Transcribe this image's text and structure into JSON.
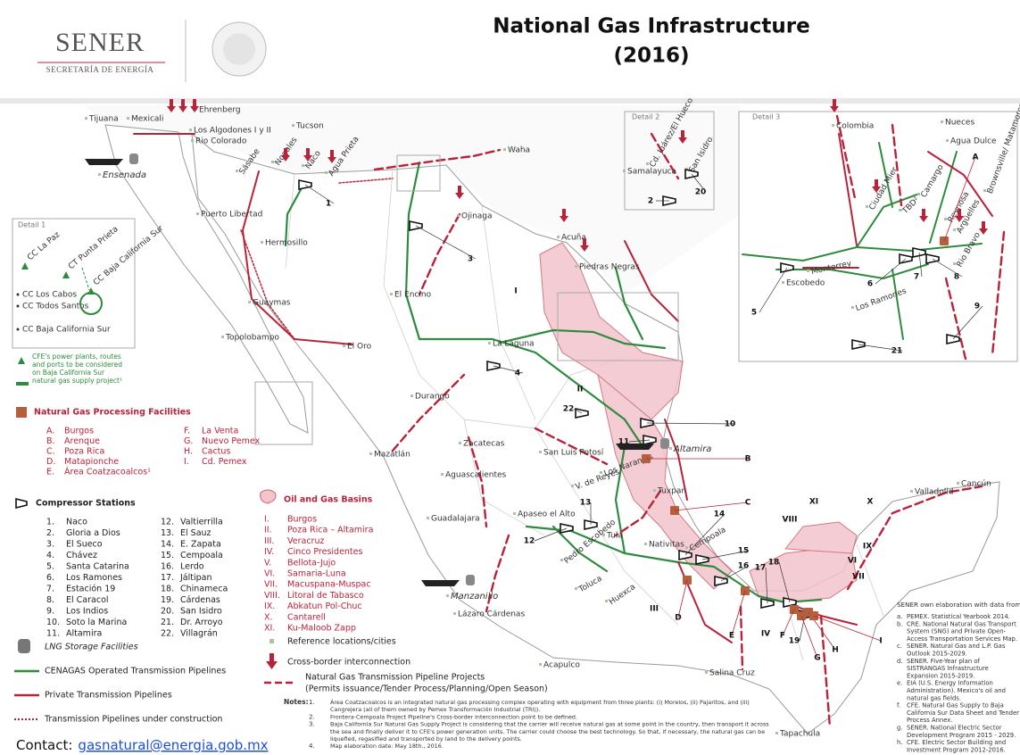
{
  "header": {
    "logo": "SENER",
    "logo_subtitle": "SECRETARÍA DE ENERGÍA",
    "title_line1": "National Gas Infrastructure",
    "title_line2": "(2016)"
  },
  "map": {
    "cities": [
      "Tijuana",
      "Mexicali",
      "Ehrenberg",
      "Los Algodones I y II",
      "Rio Colorado",
      "Tucson",
      "Ensenada",
      "Sásabe",
      "Nogales",
      "Naco",
      "Agua Prieta",
      "Waha",
      "Hermosillo",
      "Puerto Libertad",
      "Ojinaga",
      "Acuña",
      "Piedras Negras",
      "El Encino",
      "Guaymas",
      "El Oro",
      "Topolobampo",
      "La Laguna",
      "Durango",
      "Mazatlán",
      "Zacatecas",
      "San Luis Potosí",
      "Aguascalientes",
      "V. de Reyes",
      "Los Naranjos",
      "Altamira",
      "Tuxpan",
      "Guadalajara",
      "Apaseo el Alto",
      "Pedro Escobedo",
      "Tula",
      "Nativitas",
      "Cempoala",
      "Toluca",
      "Huexca",
      "Manzanillo",
      "Lázaro Cárdenas",
      "Acapulco",
      "Salina Cruz",
      "Tapachula",
      "Valladolid",
      "Cancún",
      "Colombia",
      "Nueces",
      "Agua Dulce",
      "Ciudad Mier",
      "TBD²",
      "Camargo",
      "Reynosa",
      "Argüelles",
      "Brownsville/ Matamoros",
      "Monterrey",
      "Escobedo",
      "Los Ramones",
      "Rio Bravo",
      "Samalayuca",
      "Cd. Juárez/El Hueco",
      "San Isidro"
    ],
    "details": [
      "Detail 1",
      "Detail 2",
      "Detail 3"
    ],
    "detail1_plants": [
      "CC La Paz",
      "CT Punta Prieta",
      "CC Baja California Sur"
    ],
    "detail1_list": [
      "CC Los Cabos",
      "CC Todos Santos",
      "CC Baja California Sur"
    ],
    "stations": [
      1,
      2,
      3,
      4,
      5,
      6,
      7,
      8,
      9,
      10,
      11,
      12,
      13,
      14,
      15,
      16,
      17,
      18,
      19,
      20,
      21,
      22
    ],
    "facilities": [
      "A",
      "B",
      "C",
      "D",
      "E",
      "F",
      "G",
      "H",
      "I"
    ],
    "basins": [
      "I",
      "II",
      "III",
      "IV",
      "VI",
      "VII",
      "VIII",
      "IX",
      "X",
      "XI"
    ]
  },
  "legend": {
    "cfe_note": [
      "CFE's power plants, routes",
      "and ports to be considered",
      "on Baja California Sur",
      "natural gas supply project¹"
    ],
    "processing_title": "Natural Gas Processing Facilities",
    "processing": [
      {
        "key": "A.",
        "name": "Burgos"
      },
      {
        "key": "B.",
        "name": "Arenque"
      },
      {
        "key": "C.",
        "name": "Poza Rica"
      },
      {
        "key": "D.",
        "name": "Matapionche"
      },
      {
        "key": "E.",
        "name": "Área Coatzacoalcos¹"
      },
      {
        "key": "F.",
        "name": "La Venta"
      },
      {
        "key": "G.",
        "name": "Nuevo Pemex"
      },
      {
        "key": "H.",
        "name": "Cactus"
      },
      {
        "key": "I.",
        "name": "Cd. Pemex"
      }
    ],
    "compressor_title": "Compressor Stations",
    "compressors": [
      {
        "key": "1.",
        "name": "Naco"
      },
      {
        "key": "2.",
        "name": "Gloria a Dios"
      },
      {
        "key": "3.",
        "name": "El Sueco"
      },
      {
        "key": "4.",
        "name": "Chávez"
      },
      {
        "key": "5.",
        "name": "Santa Catarina"
      },
      {
        "key": "6.",
        "name": "Los Ramones"
      },
      {
        "key": "7.",
        "name": "Estación 19"
      },
      {
        "key": "8.",
        "name": "El Caracol"
      },
      {
        "key": "9.",
        "name": "Los Indios"
      },
      {
        "key": "10.",
        "name": "Soto la Marina"
      },
      {
        "key": "11.",
        "name": "Altamira"
      },
      {
        "key": "12.",
        "name": "Valtierrilla"
      },
      {
        "key": "13.",
        "name": "El Sauz"
      },
      {
        "key": "14.",
        "name": "E. Zapata"
      },
      {
        "key": "15.",
        "name": "Cempoala"
      },
      {
        "key": "16.",
        "name": "Lerdo"
      },
      {
        "key": "17.",
        "name": "Jáltipan"
      },
      {
        "key": "18.",
        "name": "Chinameca"
      },
      {
        "key": "19.",
        "name": "Cárdenas"
      },
      {
        "key": "20.",
        "name": "San Isidro"
      },
      {
        "key": "21.",
        "name": "Dr. Arroyo"
      },
      {
        "key": "22.",
        "name": "Villagrán"
      }
    ],
    "basins_title": "Oil and Gas Basins",
    "basins": [
      {
        "key": "I.",
        "name": "Burgos"
      },
      {
        "key": "II.",
        "name": "Poza Rica – Altamira"
      },
      {
        "key": "III.",
        "name": "Veracruz"
      },
      {
        "key": "IV.",
        "name": "Cinco Presidentes"
      },
      {
        "key": "V.",
        "name": "Bellota-Jujo"
      },
      {
        "key": "VI.",
        "name": "Samaria-Luna"
      },
      {
        "key": "VII.",
        "name": "Macuspana-Muspac"
      },
      {
        "key": "VIII.",
        "name": "Litoral de Tabasco"
      },
      {
        "key": "IX.",
        "name": "Abkatun Pol-Chuc"
      },
      {
        "key": "X.",
        "name": "Cantarell"
      },
      {
        "key": "XI.",
        "name": "Ku-Maloob Zapp"
      }
    ],
    "lng": "LNG Storage Facilities",
    "cenagas": "CENAGAS Operated Transmission Pipelines",
    "private": "Private Transmission Pipelines",
    "construction": "Transmission Pipelines under construction",
    "reference": "Reference locations/cities",
    "crossborder": "Cross-border interconnection",
    "projects": [
      "Natural Gas Transmission Pipeline Projects",
      "(Permits issuance/Tender Process/Planning/Open Season)"
    ]
  },
  "notes": {
    "label": "Notes:",
    "items": [
      {
        "key": "1.",
        "lines": [
          "Área Coatzacoalcos is an integrated natural gas processing  complex operating with equipment from three plants: (i) Morelos, (ii) Pajaritos, and (iii)",
          "Cangrejera  (all of them owned by Pemex Transformación Industrial (TRI))."
        ]
      },
      {
        "key": "2.",
        "lines": [
          "Frontera-Cempoala Project Pipeline's Cross-border interconnection point to be defined."
        ]
      },
      {
        "key": "3.",
        "lines": [
          "Baja California Sur Natural Gas Supply Project is considering that the carrier will receive natural gas at some point in the country, then transport it across",
          "the sea and finally deliver it to CFE's power generation units. The carrier could choose the best technology. So that, if necessary, the natural gas can be",
          "liquefied, regasified and transported by land to the delivery points."
        ]
      },
      {
        "key": "4.",
        "lines": [
          "Map elaboration date: May 18th., 2016."
        ]
      }
    ]
  },
  "sources": {
    "title": "SENER own elaboration with data  from:",
    "items": [
      {
        "key": "a.",
        "lines": [
          "PEMEX. Statistical Yearbook 2014."
        ]
      },
      {
        "key": "b.",
        "lines": [
          "CRE. National Natural Gas Transport",
          "System (SNG) and Private Open-",
          "Access Transportation Services Map."
        ]
      },
      {
        "key": "c.",
        "lines": [
          "SENER.  Natural Gas and L.P. Gas",
          "Outlook 2015-2029."
        ]
      },
      {
        "key": "d.",
        "lines": [
          "SENER.  Five-Year  plan  of",
          "SISTRANGAS  Infrastructure",
          "Expansion 2015-2019."
        ]
      },
      {
        "key": "e.",
        "lines": [
          "EIA  (U.S.  Energy  Information",
          "Administration).  Mexico's oil and",
          "natural gas fields."
        ]
      },
      {
        "key": "f.",
        "lines": [
          "CFE.  Natural Gas Supply to Baja",
          "California Sur Data Sheet and Tender",
          "Process Annex."
        ]
      },
      {
        "key": "g.",
        "lines": [
          "SENER.  National  Electric  Sector",
          "Development Program 2015 - 2029."
        ]
      },
      {
        "key": "h.",
        "lines": [
          "CFE.  Electric  Sector  Building  and",
          "Investment Program 2012-2016."
        ]
      }
    ]
  },
  "contact": {
    "label": "Contact:",
    "email": "gasnatural@energia.gob.mx"
  }
}
